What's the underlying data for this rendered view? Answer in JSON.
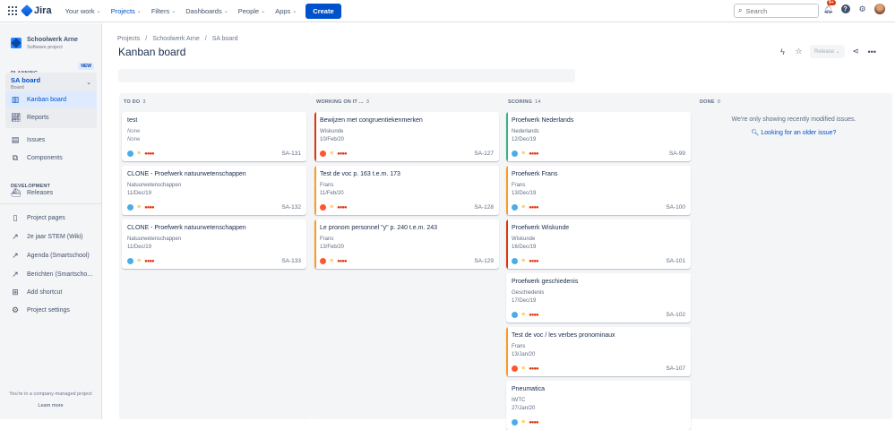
{
  "topnav": {
    "brand": "Jira",
    "items": [
      {
        "label": "Your work",
        "active": false
      },
      {
        "label": "Projects",
        "active": true
      },
      {
        "label": "Filters",
        "active": false
      },
      {
        "label": "Dashboards",
        "active": false
      },
      {
        "label": "People",
        "active": false
      },
      {
        "label": "Apps",
        "active": false
      }
    ],
    "create_label": "Create",
    "search_placeholder": "Search",
    "notifications_badge": "9+"
  },
  "sidebar": {
    "project_name": "Schoolwerk Arne",
    "project_type": "Software project",
    "planning_title": "PLANNING",
    "new_badge": "NEW",
    "board_name": "SA board",
    "board_sub": "Board",
    "board_items": [
      {
        "label": "Kanban board",
        "icon": "board-icon"
      },
      {
        "label": "Reports",
        "icon": "chart-icon"
      }
    ],
    "items": [
      {
        "label": "Issues",
        "icon": "issues-icon"
      },
      {
        "label": "Components",
        "icon": "components-icon"
      }
    ],
    "development_title": "DEVELOPMENT",
    "dev_items": [
      {
        "label": "Releases",
        "icon": "ship-icon"
      }
    ],
    "links": [
      {
        "label": "Project pages"
      },
      {
        "label": "2e jaar STEM (Wiki)"
      },
      {
        "label": "Agenda (Smartschool)"
      },
      {
        "label": "Berichten (Smartscho..."
      },
      {
        "label": "Add shortcut"
      },
      {
        "label": "Project settings"
      }
    ],
    "footer_text": "You're in a company-managed project",
    "learn_more": "Learn more"
  },
  "breadcrumb": [
    "Projects",
    "Schoolwerk Arne",
    "SA board"
  ],
  "page_title": "Kanban board",
  "release_label": "Release",
  "colors": {
    "accent": "#0052cc",
    "red": "#de350b",
    "green": "#36b37e",
    "orange": "#ff991f"
  },
  "columns": [
    {
      "title": "TO DO",
      "count": "3",
      "cards": [
        {
          "title": "test",
          "lines": [
            "None",
            "None"
          ],
          "italic": true,
          "key": "SA-131",
          "stripe": "",
          "type": "task"
        },
        {
          "title": "CLONE - Proefwerk natuurwetenschappen",
          "lines": [
            "Natuurwetenschappen",
            "11/Dec/19"
          ],
          "italic": false,
          "key": "SA-132",
          "stripe": "",
          "type": "task"
        },
        {
          "title": "CLONE - Proefwerk natuurwetenschappen",
          "lines": [
            "Natuurwetenschappen",
            "11/Dec/19"
          ],
          "italic": false,
          "key": "SA-133",
          "stripe": "",
          "type": "task"
        }
      ]
    },
    {
      "title": "WORKING ON IT ...",
      "count": "3",
      "cards": [
        {
          "title": "Bewijzen met congruentiekenmerken",
          "lines": [
            "Wiskunde",
            "10/Feb/20"
          ],
          "italic": false,
          "key": "SA-127",
          "stripe": "#de350b",
          "type": "bug"
        },
        {
          "title": "Test de voc p. 163 t.e.m. 173",
          "lines": [
            "Frans",
            "11/Feb/20"
          ],
          "italic": false,
          "key": "SA-128",
          "stripe": "#ff991f",
          "type": "bug"
        },
        {
          "title": "Le pronom personnel \"y\" p. 240 t.e.m. 243",
          "lines": [
            "Frans",
            "13/Feb/20"
          ],
          "italic": false,
          "key": "SA-129",
          "stripe": "#ff991f",
          "type": "bug"
        }
      ]
    },
    {
      "title": "SCORING",
      "count": "14",
      "cards": [
        {
          "title": "Proefwerk Nederlands",
          "lines": [
            "Nederlands",
            "12/Dec/19"
          ],
          "italic": false,
          "key": "SA-99",
          "stripe": "#36b37e",
          "type": "task"
        },
        {
          "title": "Proefwerk Frans",
          "lines": [
            "Frans",
            "13/Dec/19"
          ],
          "italic": false,
          "key": "SA-100",
          "stripe": "#ff991f",
          "type": "task"
        },
        {
          "title": "Proefwerk Wiskunde",
          "lines": [
            "Wiskunde",
            "16/Dec/19"
          ],
          "italic": false,
          "key": "SA-101",
          "stripe": "#de350b",
          "type": "task"
        },
        {
          "title": "Proefwerk geschiedenis",
          "lines": [
            "Geschiedenis",
            "17/Dec/19"
          ],
          "italic": false,
          "key": "SA-102",
          "stripe": "",
          "type": "task"
        },
        {
          "title": "Test de voc / les verbes pronominaux",
          "lines": [
            "Frans",
            "13/Jan/20"
          ],
          "italic": false,
          "key": "SA-107",
          "stripe": "#ff991f",
          "type": "bug"
        },
        {
          "title": "Pneumatica",
          "lines": [
            "IWTC",
            "27/Jan/20"
          ],
          "italic": false,
          "key": "",
          "stripe": "",
          "type": "task"
        }
      ]
    },
    {
      "title": "DONE",
      "count": "0",
      "message": "We're only showing recently modified issues.",
      "link": "Looking for an older issue?",
      "cards": []
    }
  ]
}
